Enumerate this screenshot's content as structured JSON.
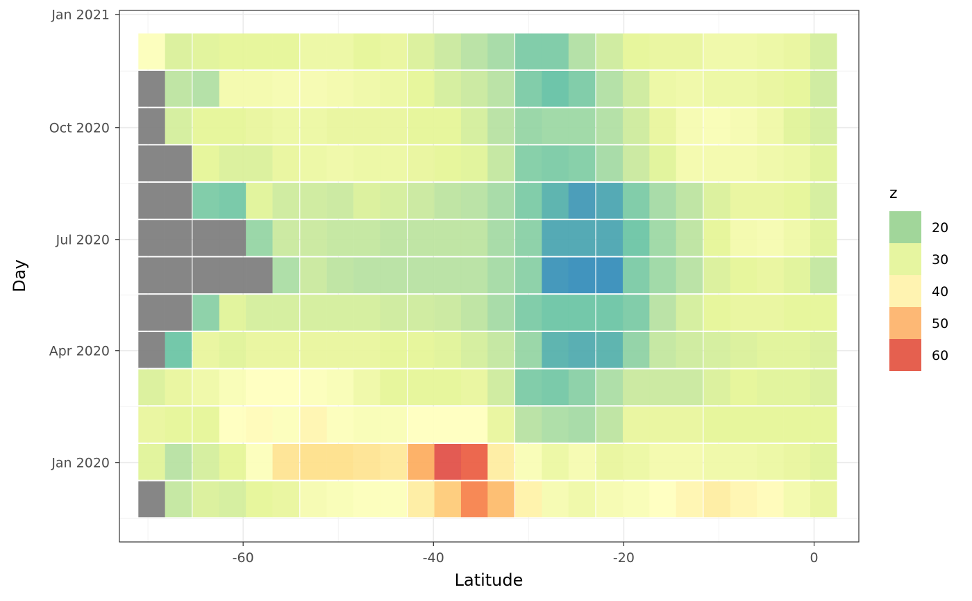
{
  "chart_data": {
    "type": "heatmap",
    "xlabel": "Latitude",
    "ylabel": "Day",
    "x_ticks": [
      -60,
      -40,
      -20,
      0
    ],
    "x_tick_labels": [
      "-60",
      "-40",
      "-20",
      "0"
    ],
    "y_tick_labels": [
      "Jan 2020",
      "Apr 2020",
      "Jul 2020",
      "Oct 2020",
      "Jan 2021"
    ],
    "xlim": [
      -73,
      4.7
    ],
    "x_centers": [
      -69.6,
      -66.8,
      -63.9,
      -61.1,
      -58.3,
      -55.5,
      -52.6,
      -49.8,
      -47.0,
      -44.2,
      -41.3,
      -38.5,
      -35.7,
      -32.9,
      -30.0,
      -27.2,
      -24.4,
      -21.5,
      -18.7,
      -15.9,
      -13.1,
      -10.2,
      -7.4,
      -4.6,
      -1.8,
      1.0
    ],
    "rows": [
      "Dec 2019",
      "Jan 2020",
      "Feb 2020",
      "Mar 2020",
      "Apr 2020",
      "May 2020",
      "Jun 2020",
      "Jul 2020",
      "Aug 2020",
      "Sep 2020",
      "Oct 2020",
      "Nov 2020",
      "Dec 2020"
    ],
    "z": [
      [
        null,
        24,
        28,
        27,
        30,
        31,
        35,
        36,
        37,
        37,
        42,
        48,
        56,
        50,
        41,
        35,
        33,
        35,
        36,
        38,
        40,
        42,
        40,
        39,
        34,
        31
      ],
      [
        29,
        22,
        27,
        30,
        37,
        44,
        45,
        45,
        44,
        43,
        52,
        62,
        60,
        42,
        36,
        32,
        35,
        31,
        32,
        34,
        34,
        33,
        33,
        32,
        31,
        29
      ],
      [
        31,
        30,
        30,
        38,
        39,
        37,
        40,
        37,
        36,
        36,
        38,
        38,
        38,
        31,
        22,
        20,
        19,
        23,
        31,
        31,
        31,
        30,
        30,
        30,
        30,
        30
      ],
      [
        28,
        31,
        33,
        36,
        38,
        38,
        37,
        36,
        33,
        30,
        30,
        30,
        31,
        26,
        13,
        12,
        15,
        20,
        25,
        25,
        25,
        28,
        30,
        29,
        29,
        28
      ],
      [
        null,
        11,
        31,
        29,
        31,
        31,
        31,
        31,
        31,
        30,
        30,
        29,
        27,
        24,
        17,
        7,
        6,
        7,
        16,
        24,
        26,
        27,
        28,
        29,
        29,
        28
      ],
      [
        null,
        null,
        15,
        29,
        27,
        27,
        27,
        27,
        27,
        26,
        26,
        25,
        23,
        19,
        13,
        11,
        11,
        11,
        13,
        22,
        27,
        30,
        31,
        31,
        30,
        30
      ],
      [
        null,
        null,
        null,
        null,
        null,
        20,
        25,
        23,
        22,
        22,
        22,
        22,
        22,
        19,
        15,
        2,
        1,
        1,
        13,
        18,
        22,
        28,
        30,
        31,
        29,
        24
      ],
      [
        null,
        null,
        null,
        null,
        17,
        25,
        25,
        24,
        24,
        23,
        23,
        23,
        23,
        19,
        15,
        5,
        5,
        5,
        11,
        18,
        23,
        30,
        34,
        35,
        33,
        29
      ],
      [
        null,
        null,
        13,
        12,
        29,
        26,
        26,
        25,
        28,
        27,
        25,
        23,
        22,
        19,
        13,
        7,
        3,
        5,
        13,
        19,
        23,
        28,
        31,
        31,
        30,
        27
      ],
      [
        null,
        null,
        30,
        28,
        28,
        31,
        32,
        33,
        32,
        32,
        31,
        30,
        29,
        24,
        14,
        13,
        14,
        19,
        25,
        29,
        34,
        34,
        34,
        33,
        32,
        29
      ],
      [
        null,
        27,
        30,
        30,
        31,
        32,
        32,
        31,
        31,
        31,
        30,
        30,
        27,
        22,
        17,
        18,
        18,
        21,
        26,
        31,
        35,
        36,
        35,
        33,
        29,
        27
      ],
      [
        null,
        23,
        21,
        34,
        34,
        35,
        35,
        34,
        33,
        32,
        30,
        27,
        25,
        22,
        13,
        10,
        13,
        21,
        26,
        32,
        33,
        32,
        32,
        31,
        30,
        26
      ],
      [
        37,
        28,
        29,
        30,
        30,
        30,
        32,
        32,
        30,
        31,
        28,
        25,
        22,
        19,
        13,
        13,
        21,
        26,
        30,
        31,
        31,
        33,
        33,
        32,
        31,
        27
      ]
    ],
    "legend": {
      "title": "z",
      "breaks": [
        20,
        30,
        40,
        50,
        60
      ],
      "colors": [
        "#a1d69a",
        "#e6f5a0",
        "#fff3b1",
        "#fdb875",
        "#e5604f"
      ]
    },
    "na_color": "#7f7f7f",
    "grid": true
  }
}
